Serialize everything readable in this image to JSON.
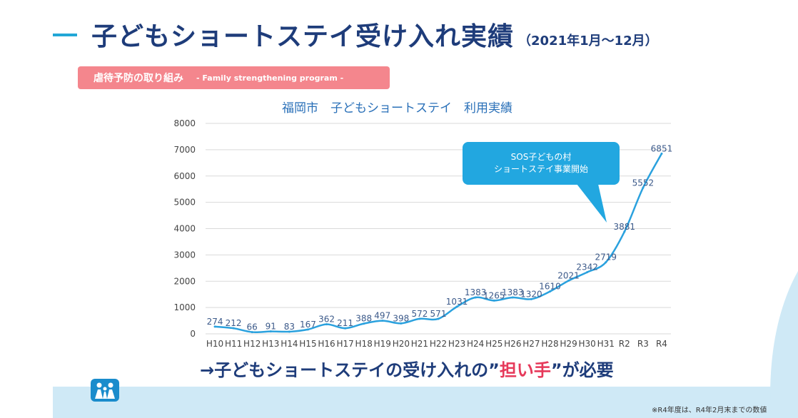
{
  "header": {
    "title": "子どもショートステイ受け入れ実績",
    "subtitle": "（2021年1月〜12月）"
  },
  "tag": {
    "main": "虐待予防の取り組み",
    "sub": "- Family strengthening program -"
  },
  "callout": {
    "line1": "SOS子どもの村",
    "line2": "ショートステイ事業開始"
  },
  "bottom": {
    "prefix": "→子どもショートステイの受け入れの”",
    "emphasis": "担い手",
    "suffix": "”が必要"
  },
  "footnote": "※R4年度は、R4年2月末までの数値",
  "colors": {
    "title": "#1e3c7a",
    "accent": "#22a7d6",
    "tag": "#f4868d",
    "line": "#2aa1de",
    "emphasis": "#e6395a"
  },
  "chart_data": {
    "type": "line",
    "title": "福岡市　子どもショートステイ　利用実績",
    "categories": [
      "H10",
      "H11",
      "H12",
      "H13",
      "H14",
      "H15",
      "H16",
      "H17",
      "H18",
      "H19",
      "H20",
      "H21",
      "H22",
      "H23",
      "H24",
      "H25",
      "H26",
      "H27",
      "H28",
      "H29",
      "H30",
      "H31",
      "R2",
      "R3",
      "R4"
    ],
    "values": [
      274,
      212,
      66,
      91,
      83,
      167,
      362,
      211,
      388,
      497,
      398,
      572,
      571,
      1031,
      1383,
      1265,
      1383,
      1320,
      1610,
      2021,
      2342,
      2719,
      3881,
      5552,
      6851
    ],
    "ylim": [
      0,
      8000
    ],
    "yticks": [
      "0",
      "1000",
      "2000",
      "3000",
      "4000",
      "5000",
      "6000",
      "7000",
      "8000"
    ],
    "grid": true,
    "legend": false
  }
}
